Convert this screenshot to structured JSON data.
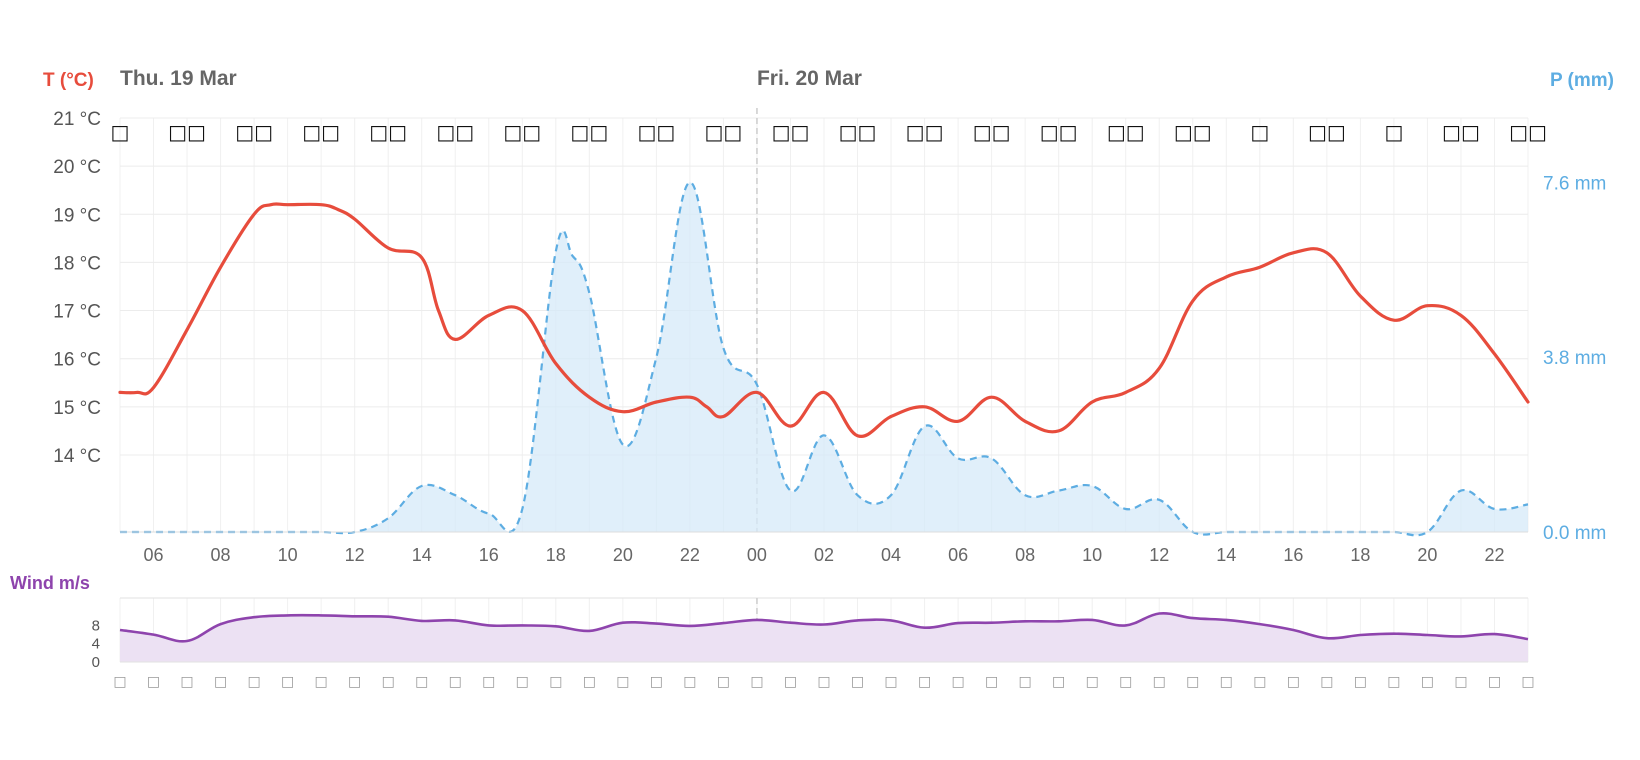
{
  "chart_data": [
    {
      "type": "line",
      "title": "",
      "day_labels": [
        {
          "label": "Thu. 19 Mar",
          "at": 5
        },
        {
          "label": "Fri. 20 Mar",
          "at": 24
        }
      ],
      "left_axis": {
        "label": "T (°C)",
        "color": "#e74c3c",
        "ylim": [
          12.4,
          21.0
        ],
        "ticks": [
          {
            "value": 14,
            "label": "14 °C"
          },
          {
            "value": 15,
            "label": "15 °C"
          },
          {
            "value": 16,
            "label": "16 °C"
          },
          {
            "value": 17,
            "label": "17 °C"
          },
          {
            "value": 18,
            "label": "18 °C"
          },
          {
            "value": 19,
            "label": "19 °C"
          },
          {
            "value": 20,
            "label": "20 °C"
          },
          {
            "value": 21,
            "label": "21 °C"
          }
        ]
      },
      "right_axis": {
        "label": "P (mm)",
        "color": "#5dade2",
        "ylim": [
          0,
          9.0
        ],
        "ticks": [
          {
            "value": 0,
            "label": "0.0 mm"
          },
          {
            "value": 3.8,
            "label": "3.8 mm"
          },
          {
            "value": 7.6,
            "label": "7.6 mm"
          }
        ]
      },
      "x_range": [
        5,
        47
      ],
      "x_ticks": [
        {
          "value": 6,
          "label": "06"
        },
        {
          "value": 8,
          "label": "08"
        },
        {
          "value": 10,
          "label": "10"
        },
        {
          "value": 12,
          "label": "12"
        },
        {
          "value": 14,
          "label": "14"
        },
        {
          "value": 16,
          "label": "16"
        },
        {
          "value": 18,
          "label": "18"
        },
        {
          "value": 20,
          "label": "20"
        },
        {
          "value": 22,
          "label": "22"
        },
        {
          "value": 24,
          "label": "00"
        },
        {
          "value": 26,
          "label": "02"
        },
        {
          "value": 28,
          "label": "04"
        },
        {
          "value": 30,
          "label": "06"
        },
        {
          "value": 32,
          "label": "08"
        },
        {
          "value": 34,
          "label": "10"
        },
        {
          "value": 36,
          "label": "12"
        },
        {
          "value": 38,
          "label": "14"
        },
        {
          "value": 40,
          "label": "16"
        },
        {
          "value": 42,
          "label": "18"
        },
        {
          "value": 44,
          "label": "20"
        },
        {
          "value": 46,
          "label": "22"
        }
      ],
      "midnight_x": 24,
      "grid": true,
      "symbol_row": [
        {
          "x": 5,
          "text": "□"
        },
        {
          "x": 7,
          "text": "□□"
        },
        {
          "x": 9,
          "text": "□□"
        },
        {
          "x": 11,
          "text": "□□"
        },
        {
          "x": 13,
          "text": "□□"
        },
        {
          "x": 15,
          "text": "□□"
        },
        {
          "x": 17,
          "text": "□□"
        },
        {
          "x": 19,
          "text": "□□"
        },
        {
          "x": 21,
          "text": "□□"
        },
        {
          "x": 23,
          "text": "□□"
        },
        {
          "x": 25,
          "text": "□□"
        },
        {
          "x": 27,
          "text": "□□"
        },
        {
          "x": 29,
          "text": "□□"
        },
        {
          "x": 31,
          "text": "□□"
        },
        {
          "x": 33,
          "text": "□□"
        },
        {
          "x": 35,
          "text": "□□"
        },
        {
          "x": 37,
          "text": "□□"
        },
        {
          "x": 39,
          "text": "□"
        },
        {
          "x": 41,
          "text": "□□"
        },
        {
          "x": 43,
          "text": "□"
        },
        {
          "x": 45,
          "text": "□□"
        },
        {
          "x": 47,
          "text": "□□"
        }
      ],
      "series": [
        {
          "axis": "left",
          "color": "#e74c3c",
          "style": "solid",
          "x": [
            5,
            5.5,
            6,
            7,
            8,
            9,
            9.5,
            10,
            11,
            11.5,
            12,
            13,
            14,
            14.5,
            15,
            16,
            17,
            18,
            19,
            20,
            21,
            22,
            22.5,
            23,
            24,
            25,
            26,
            27,
            28,
            29,
            30,
            31,
            32,
            33,
            34,
            35,
            36,
            37,
            38,
            39,
            40,
            41,
            42,
            43,
            44,
            45,
            46,
            47
          ],
          "y": [
            15.3,
            15.3,
            15.4,
            16.6,
            17.9,
            19.0,
            19.2,
            19.2,
            19.2,
            19.1,
            18.9,
            18.3,
            18.1,
            17.0,
            16.4,
            16.9,
            17.0,
            15.9,
            15.2,
            14.9,
            15.1,
            15.2,
            15.0,
            14.8,
            15.3,
            14.6,
            15.3,
            14.4,
            14.8,
            15.0,
            14.7,
            15.2,
            14.7,
            14.5,
            15.1,
            15.3,
            15.8,
            17.2,
            17.7,
            17.9,
            18.2,
            18.2,
            17.3,
            16.8,
            17.1,
            16.9,
            16.1,
            15.1
          ]
        },
        {
          "axis": "right",
          "color": "#5dade2",
          "style": "dashed",
          "fill": "#d6eaf8",
          "x": [
            5,
            6,
            7,
            8,
            9,
            10,
            11,
            12,
            13,
            14,
            15,
            16,
            17,
            18,
            18.5,
            19,
            20,
            21,
            22,
            23,
            24,
            25,
            26,
            27,
            28,
            29,
            30,
            31,
            32,
            33,
            34,
            35,
            36,
            37,
            38,
            39,
            40,
            41,
            42,
            43,
            44,
            45,
            46,
            47
          ],
          "y": [
            0,
            0,
            0,
            0,
            0,
            0,
            0,
            0,
            0.3,
            1.0,
            0.8,
            0.4,
            0.5,
            6.1,
            6.0,
            5.2,
            1.9,
            3.8,
            7.6,
            4.0,
            3.2,
            0.9,
            2.1,
            0.8,
            0.8,
            2.3,
            1.6,
            1.6,
            0.8,
            0.9,
            1.0,
            0.5,
            0.7,
            0,
            0,
            0,
            0,
            0,
            0,
            0,
            0,
            0.9,
            0.5,
            0.6
          ]
        }
      ]
    },
    {
      "type": "area",
      "title": "",
      "ylabel": "Wind m/s",
      "color": "#8e44ad",
      "fill": "#ece1f3",
      "ylim": [
        0,
        14
      ],
      "y_ticks": [
        {
          "value": 0,
          "label": "0"
        },
        {
          "value": 4,
          "label": "4"
        },
        {
          "value": 8,
          "label": "8"
        }
      ],
      "x_range": [
        5,
        47
      ],
      "midnight_x": 24,
      "x": [
        5,
        6,
        7,
        8,
        9,
        10,
        11,
        12,
        13,
        14,
        15,
        16,
        17,
        18,
        19,
        20,
        21,
        22,
        23,
        24,
        25,
        26,
        27,
        28,
        29,
        30,
        31,
        32,
        33,
        34,
        35,
        36,
        37,
        38,
        39,
        40,
        41,
        42,
        43,
        44,
        45,
        46,
        47
      ],
      "values": [
        7.0,
        6.0,
        4.6,
        8.3,
        9.8,
        10.2,
        10.2,
        10.0,
        9.9,
        9.0,
        9.1,
        8.0,
        8.0,
        7.8,
        6.8,
        8.6,
        8.4,
        7.9,
        8.5,
        9.2,
        8.6,
        8.2,
        9.1,
        9.1,
        7.5,
        8.5,
        8.6,
        8.9,
        8.9,
        9.2,
        8.0,
        10.6,
        9.6,
        9.2,
        8.3,
        7.0,
        5.2,
        5.9,
        6.2,
        5.9,
        5.6,
        6.1,
        5.0
      ],
      "arrow_row": [
        "□",
        "□",
        "□",
        "□",
        "□",
        "□",
        "□",
        "□",
        "□",
        "□",
        "□",
        "□",
        "□",
        "□",
        "□",
        "□",
        "□",
        "□",
        "□",
        "□",
        "□",
        "□",
        "□",
        "□",
        "□",
        "□",
        "□",
        "□",
        "□",
        "□",
        "□",
        "□",
        "□",
        "□",
        "□",
        "□",
        "□",
        "□",
        "□",
        "□",
        "□",
        "□",
        "□"
      ]
    }
  ]
}
